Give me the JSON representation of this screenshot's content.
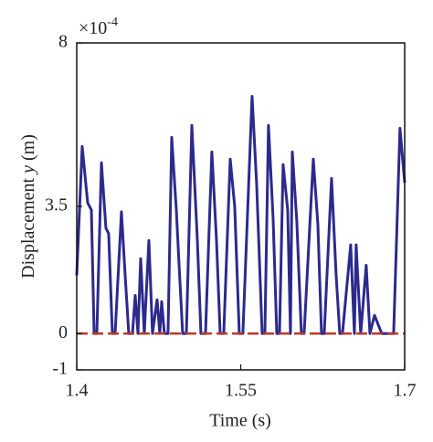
{
  "chart_data": {
    "type": "line",
    "ylabel": [
      "Displacement ",
      "y",
      " (m)"
    ],
    "xlabel": "Time (s)",
    "y_scale_label": {
      "base": "×10",
      "exponent": "-4"
    },
    "xlim": [
      1.4,
      1.7
    ],
    "xticks": [
      {
        "value": 1.4,
        "label": "1.4"
      },
      1.55,
      {
        "value": 1.7,
        "label": "1.7"
      }
    ],
    "ylim": [
      -1,
      8
    ],
    "yticks": [
      -1,
      0,
      3.5,
      8
    ],
    "grid": false,
    "series": [
      {
        "color": "#2c2a8c",
        "dash": false,
        "x": [
          1.4,
          1.405,
          1.41,
          1.4134,
          1.4159,
          1.4184,
          1.4226,
          1.4267,
          1.4292,
          1.4326,
          1.4351,
          1.4409,
          1.4443,
          1.4476,
          1.451,
          1.4535,
          1.456,
          1.4585,
          1.4618,
          1.466,
          1.4693,
          1.4735,
          1.476,
          1.4777,
          1.4802,
          1.4835,
          1.4869,
          1.4911,
          1.4936,
          1.4969,
          1.5003,
          1.5053,
          1.5103,
          1.5136,
          1.5178,
          1.5236,
          1.5278,
          1.5312,
          1.5345,
          1.5404,
          1.5445,
          1.5487,
          1.552,
          1.5604,
          1.5646,
          1.5696,
          1.5721,
          1.5754,
          1.5796,
          1.583,
          1.5855,
          1.5888,
          1.593,
          1.5955,
          1.5972,
          1.6013,
          1.6055,
          1.608,
          1.6164,
          1.6206,
          1.6239,
          1.6264,
          1.6331,
          1.6373,
          1.6406,
          1.6431,
          1.6506,
          1.654,
          1.6556,
          1.6598,
          1.6648,
          1.6682,
          1.6724,
          1.679,
          1.6899,
          1.6957,
          1.7
        ],
        "values": [
          1.6,
          5.15,
          3.6,
          3.4,
          0,
          0,
          4.7,
          2.9,
          2.75,
          0,
          0,
          3.35,
          1.6,
          0,
          0,
          1.05,
          0,
          2.06,
          0,
          2.56,
          0,
          0.93,
          0,
          0.88,
          0,
          0,
          5.4,
          3.4,
          1.9,
          0,
          0,
          5.73,
          2.6,
          0,
          0,
          5.0,
          2.6,
          0,
          0,
          4.8,
          3.5,
          0,
          0,
          6.53,
          4.1,
          0,
          0,
          5.73,
          3.2,
          0,
          0,
          4.65,
          3.4,
          0,
          5.0,
          3.1,
          0,
          0,
          4.8,
          3.0,
          0,
          0,
          4.27,
          1.6,
          0,
          0,
          2.44,
          0,
          2.44,
          0,
          1.88,
          0,
          0.5,
          0,
          0,
          5.65,
          4.15
        ]
      },
      {
        "color": "#c0392b",
        "dash": true,
        "x": [
          1.4,
          1.7
        ],
        "values": [
          0,
          0
        ]
      }
    ]
  }
}
